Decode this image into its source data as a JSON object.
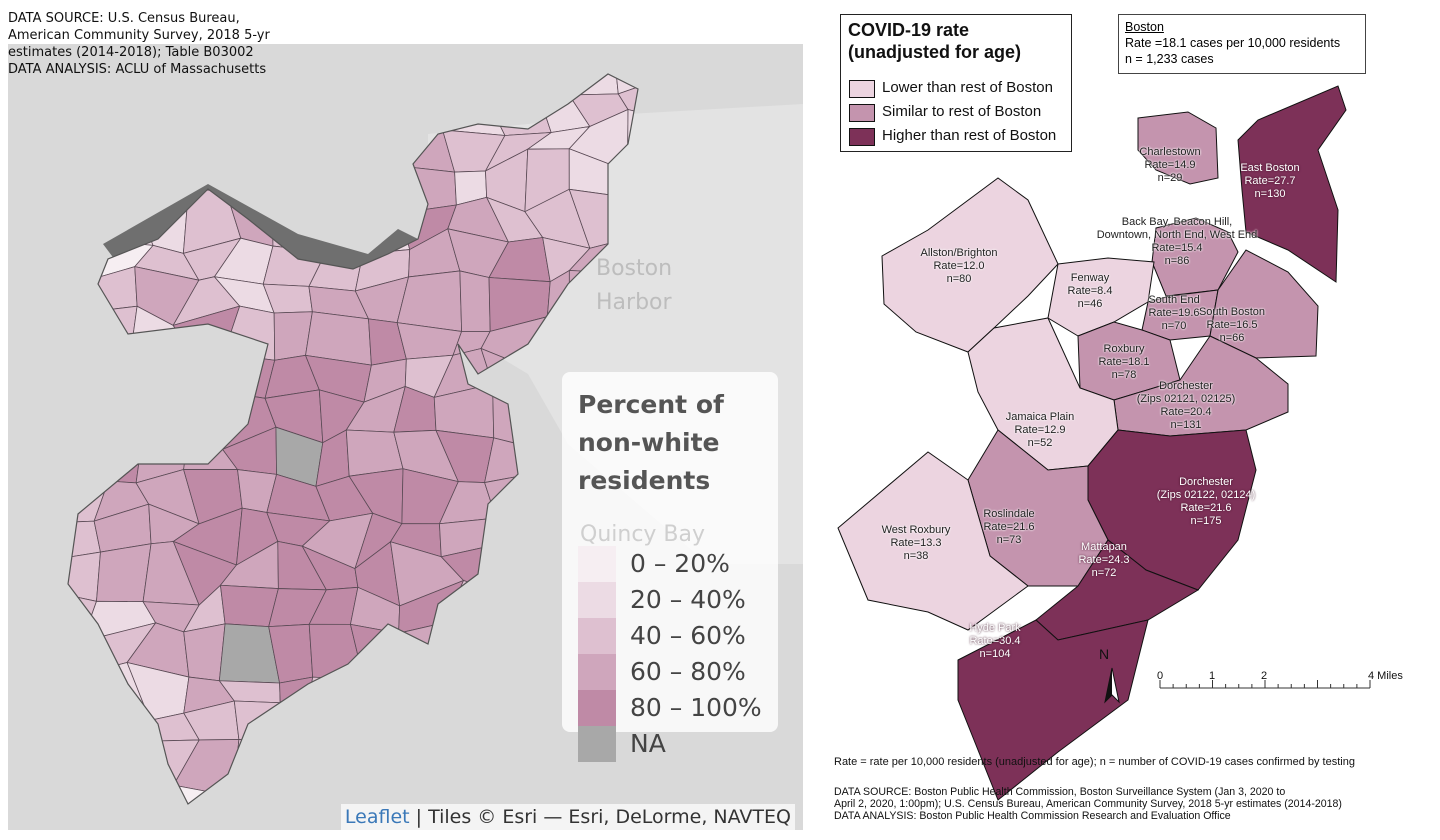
{
  "left": {
    "source_lines": [
      "DATA SOURCE: U.S. Census Bureau,",
      "American Community Survey, 2018 5-yr",
      "estimates (2014-2018); Table B03002",
      "DATA ANALYSIS: ACLU of Massachusetts"
    ],
    "basemap_labels": {
      "harbor1": "Boston",
      "harbor2": "Harbor",
      "bay": "Quincy Bay"
    },
    "legend": {
      "title_lines": [
        "Percent of",
        "non-white",
        "residents"
      ],
      "items": [
        {
          "label": "0 – 20%",
          "color": "#f6eef2"
        },
        {
          "label": "20 – 40%",
          "color": "#ecdbe4"
        },
        {
          "label": "40 – 60%",
          "color": "#dec0d0"
        },
        {
          "label": "60 – 80%",
          "color": "#cfa6bc"
        },
        {
          "label": "80 – 100%",
          "color": "#bf8aa6"
        },
        {
          "label": "NA",
          "color": "#a8a8a8"
        }
      ]
    },
    "attribution": {
      "link": "Leaflet",
      "text": " | Tiles © Esri — Esri, DeLorme, NAVTEQ"
    }
  },
  "right": {
    "legend": {
      "title_lines": [
        "COVID-19 rate",
        "(unadjusted for age)"
      ],
      "items": [
        {
          "label": "Lower than rest of Boston",
          "color": "#ecd4e0"
        },
        {
          "label": "Similar to rest of Boston",
          "color": "#c494ae"
        },
        {
          "label": "Higher than rest of Boston",
          "color": "#7d3158"
        }
      ]
    },
    "summary": {
      "heading": "Boston",
      "line1": "Rate =18.1 cases per 10,000 residents",
      "line2": "n = 1,233 cases"
    },
    "neighborhoods": [
      {
        "lines": [
          "Charlestown",
          "Rate=14.9",
          "n=29"
        ],
        "category": "similar"
      },
      {
        "lines": [
          "East Boston",
          "Rate=27.7",
          "n=130"
        ],
        "category": "higher"
      },
      {
        "lines": [
          "Back Bay, Beacon Hill,",
          "Downtown, North End, West End",
          "Rate=15.4",
          "n=86"
        ],
        "category": "similar"
      },
      {
        "lines": [
          "Allston/Brighton",
          "Rate=12.0",
          "n=80"
        ],
        "category": "lower"
      },
      {
        "lines": [
          "Fenway",
          "Rate=8.4",
          "n=46"
        ],
        "category": "lower"
      },
      {
        "lines": [
          "South End",
          "Rate=19.6",
          "n=70"
        ],
        "category": "similar"
      },
      {
        "lines": [
          "South Boston",
          "Rate=16.5",
          "n=66"
        ],
        "category": "similar"
      },
      {
        "lines": [
          "Roxbury",
          "Rate=18.1",
          "n=78"
        ],
        "category": "similar"
      },
      {
        "lines": [
          "Dorchester",
          "(Zips 02121, 02125)",
          "Rate=20.4",
          "n=131"
        ],
        "category": "similar"
      },
      {
        "lines": [
          "Jamaica Plain",
          "Rate=12.9",
          "n=52"
        ],
        "category": "lower"
      },
      {
        "lines": [
          "Dorchester",
          "(Zips 02122, 02124)",
          "Rate=21.6",
          "n=175"
        ],
        "category": "higher"
      },
      {
        "lines": [
          "Roslindale",
          "Rate=21.6",
          "n=73"
        ],
        "category": "similar"
      },
      {
        "lines": [
          "West Roxbury",
          "Rate=13.3",
          "n=38"
        ],
        "category": "lower"
      },
      {
        "lines": [
          "Mattapan",
          "Rate=24.3",
          "n=72"
        ],
        "category": "higher"
      },
      {
        "lines": [
          "Hyde Park",
          "Rate=30.4",
          "n=104"
        ],
        "category": "higher"
      }
    ],
    "north_label": "N",
    "scale": {
      "ticks": [
        "0",
        "1",
        "2",
        "4 Miles"
      ]
    },
    "footnote": "Rate = rate per 10,000 residents (unadjusted for age); n = number of COVID-19 cases confirmed by testing",
    "source_lines": [
      "DATA SOURCE: Boston Public Health Commission, Boston Surveillance System (Jan 3, 2020 to",
      "April 2, 2020, 1:00pm); U.S. Census Bureau, American Community Survey, 2018 5-yr estimates (2014-2018)",
      "DATA ANALYSIS: Boston Public Health Commission Research and Evaluation Office"
    ]
  }
}
